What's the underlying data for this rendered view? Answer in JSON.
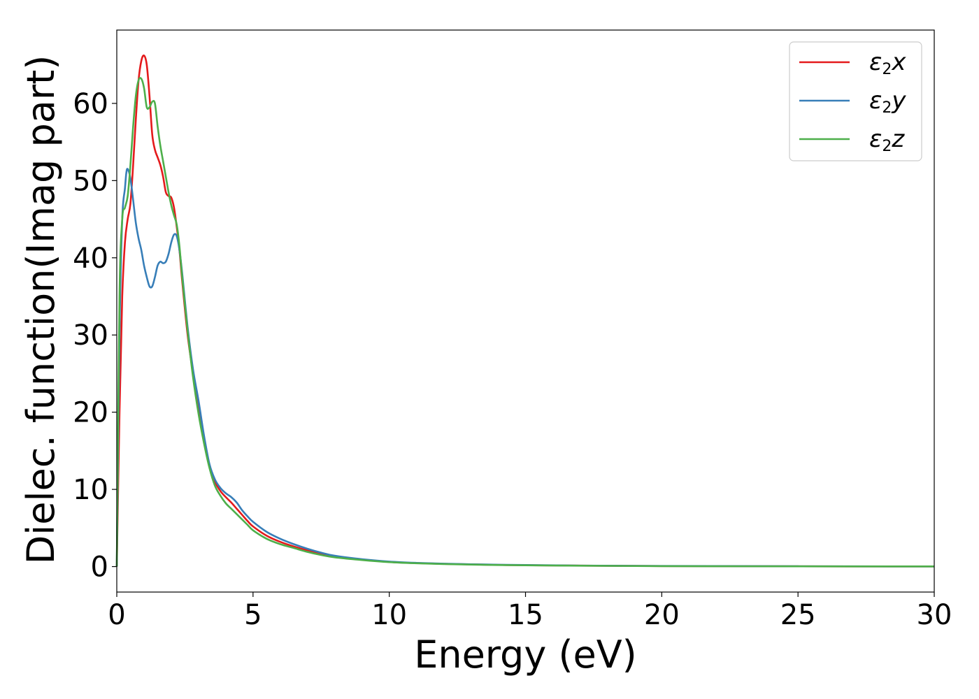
{
  "chart_data": {
    "type": "line",
    "title": "",
    "xlabel": "Energy (eV)",
    "ylabel": "Dielec. function(Imag part)",
    "xlim": [
      0,
      30
    ],
    "ylim": [
      -3.3,
      69.5
    ],
    "xticks": [
      0,
      5,
      10,
      15,
      20,
      25,
      30
    ],
    "yticks": [
      0,
      10,
      20,
      30,
      40,
      50,
      60
    ],
    "grid": false,
    "legend_position": "top-right",
    "series": [
      {
        "name": "ε₂x",
        "legend_main": "ε",
        "legend_sub": "2",
        "legend_tail": "x",
        "color": "#e41a1c",
        "x": [
          0,
          0.1,
          0.2,
          0.3,
          0.4,
          0.5,
          0.6,
          0.7,
          0.8,
          0.9,
          1.0,
          1.1,
          1.2,
          1.3,
          1.4,
          1.5,
          1.6,
          1.7,
          1.8,
          1.9,
          2.0,
          2.1,
          2.2,
          2.3,
          2.4,
          2.6,
          2.8,
          3.0,
          3.2,
          3.4,
          3.6,
          3.8,
          4.0,
          4.2,
          4.4,
          4.6,
          4.8,
          5.0,
          5.5,
          6.0,
          6.5,
          7.0,
          7.5,
          8.0,
          9.0,
          10.0,
          11.0,
          12.0,
          13.0,
          14.0,
          15.0,
          17.0,
          20.0,
          25.0,
          30.0
        ],
        "y": [
          0,
          20,
          35,
          42,
          45,
          47,
          52,
          58,
          63,
          65.5,
          66.2,
          65,
          61,
          56,
          54,
          53,
          52,
          50.5,
          48.5,
          48,
          47.8,
          46.5,
          44,
          41,
          37,
          30,
          25,
          20.5,
          16.5,
          13,
          11,
          9.8,
          9,
          8.3,
          7.5,
          6.7,
          5.9,
          5.2,
          4,
          3.2,
          2.6,
          2.1,
          1.7,
          1.3,
          0.9,
          0.6,
          0.45,
          0.35,
          0.28,
          0.22,
          0.18,
          0.12,
          0.07,
          0.03,
          0.02
        ]
      },
      {
        "name": "ε₂y",
        "legend_main": "ε",
        "legend_sub": "2",
        "legend_tail": "y",
        "color": "#377eb8",
        "x": [
          0,
          0.1,
          0.2,
          0.3,
          0.35,
          0.4,
          0.5,
          0.6,
          0.7,
          0.8,
          0.9,
          1.0,
          1.1,
          1.2,
          1.3,
          1.4,
          1.5,
          1.6,
          1.7,
          1.8,
          1.9,
          2.0,
          2.1,
          2.2,
          2.3,
          2.4,
          2.6,
          2.8,
          3.0,
          3.2,
          3.4,
          3.6,
          3.8,
          4.0,
          4.2,
          4.4,
          4.6,
          4.8,
          5.0,
          5.5,
          6.0,
          6.5,
          7.0,
          7.5,
          8.0,
          9.0,
          10.0,
          11.0,
          12.0,
          13.0,
          14.0,
          15.0,
          17.0,
          20.0,
          25.0,
          30.0
        ],
        "y": [
          0,
          30,
          45,
          49,
          51,
          51.5,
          50.3,
          47.5,
          44.5,
          42.5,
          41,
          39,
          37.5,
          36.3,
          36.3,
          37.5,
          39,
          39.5,
          39.3,
          39.5,
          40.5,
          42,
          43,
          42.8,
          41,
          38,
          31,
          25.5,
          21.5,
          17,
          13.3,
          11.3,
          10.2,
          9.5,
          9,
          8.3,
          7.3,
          6.5,
          5.8,
          4.5,
          3.6,
          2.9,
          2.3,
          1.8,
          1.4,
          0.95,
          0.65,
          0.48,
          0.37,
          0.3,
          0.24,
          0.2,
          0.13,
          0.08,
          0.04,
          0.02
        ]
      },
      {
        "name": "ε₂z",
        "legend_main": "ε",
        "legend_sub": "2",
        "legend_tail": "z",
        "color": "#4daf4a",
        "x": [
          0,
          0.1,
          0.2,
          0.3,
          0.4,
          0.5,
          0.6,
          0.7,
          0.8,
          0.9,
          1.0,
          1.1,
          1.2,
          1.3,
          1.4,
          1.5,
          1.6,
          1.7,
          1.8,
          1.9,
          2.0,
          2.1,
          2.2,
          2.3,
          2.4,
          2.6,
          2.8,
          3.0,
          3.2,
          3.4,
          3.6,
          3.8,
          4.0,
          4.2,
          4.4,
          4.6,
          4.8,
          5.0,
          5.5,
          6.0,
          6.5,
          7.0,
          7.5,
          8.0,
          9.0,
          10.0,
          11.0,
          12.0,
          13.0,
          14.0,
          15.0,
          17.0,
          20.0,
          25.0,
          30.0
        ],
        "y": [
          0,
          35,
          45,
          46.5,
          48,
          52,
          57,
          61,
          63,
          63.2,
          62,
          59.5,
          59.5,
          60.2,
          60,
          57,
          54.5,
          52.5,
          50.5,
          48.5,
          46.8,
          45.5,
          44.3,
          41.5,
          37.5,
          30.5,
          24.5,
          19.8,
          16,
          12.8,
          10.5,
          9.2,
          8.2,
          7.5,
          6.8,
          6.1,
          5.4,
          4.7,
          3.6,
          2.9,
          2.4,
          1.9,
          1.5,
          1.2,
          0.85,
          0.58,
          0.43,
          0.33,
          0.26,
          0.2,
          0.17,
          0.11,
          0.06,
          0.03,
          0.02
        ]
      }
    ]
  }
}
